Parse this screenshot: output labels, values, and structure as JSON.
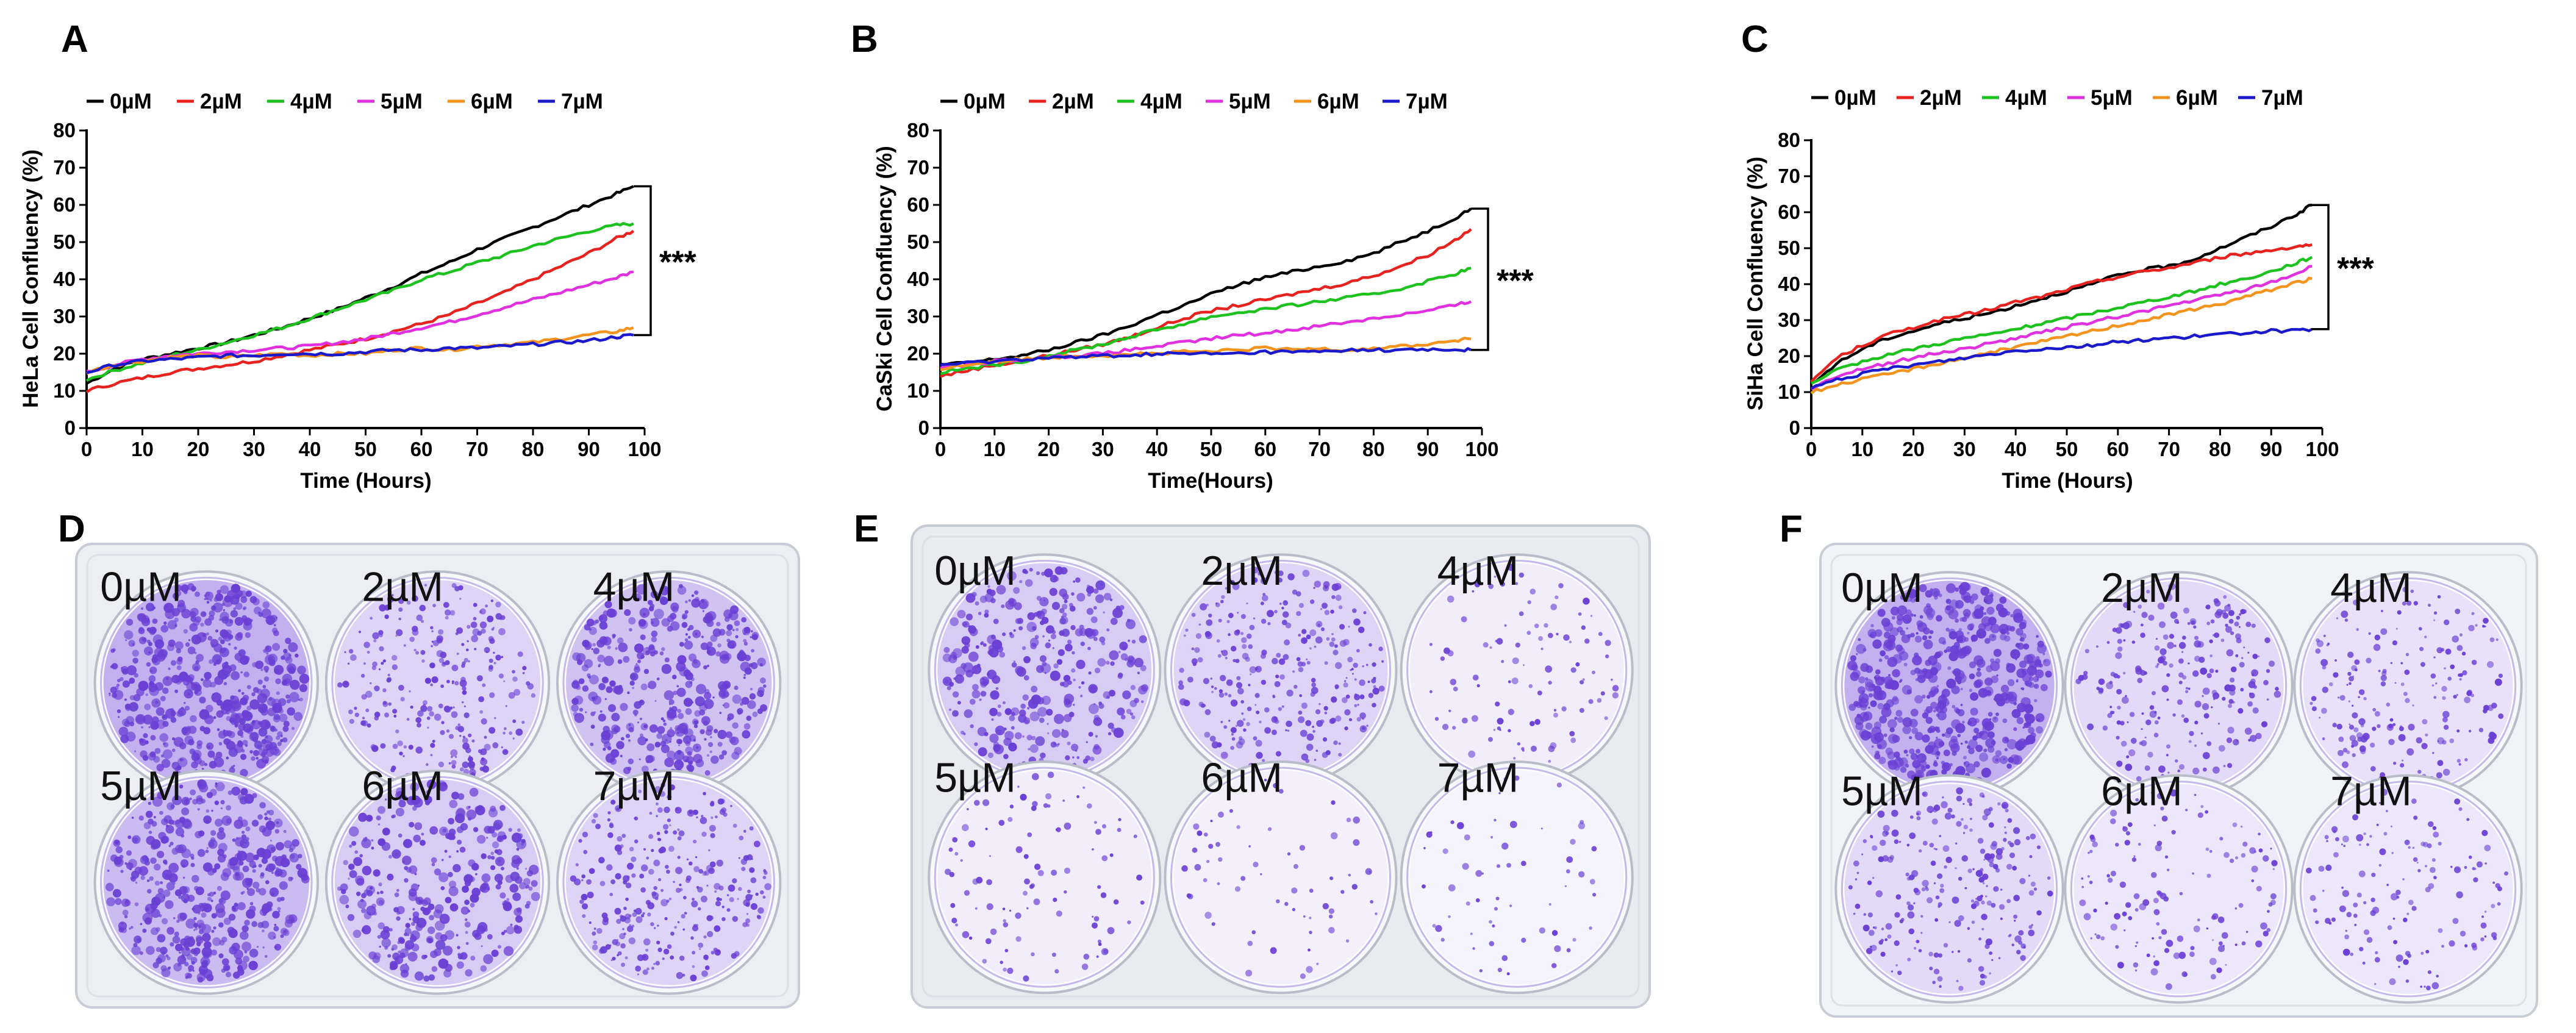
{
  "chart_data": [
    {
      "type": "line",
      "panel": "A",
      "ylabel": "HeLa Cell Confluency (%)",
      "xlabel": "Time (Hours)",
      "xlim": [
        0,
        100
      ],
      "ylim": [
        0,
        80
      ],
      "x_ticks": [
        "0",
        "10",
        "20",
        "30",
        "40",
        "50",
        "60",
        "70",
        "80",
        "90",
        "100"
      ],
      "y_ticks": [
        "0",
        "10",
        "20",
        "30",
        "40",
        "50",
        "60",
        "70",
        "80"
      ],
      "significance": "***",
      "x": [
        0,
        5,
        10,
        15,
        20,
        25,
        30,
        35,
        40,
        45,
        50,
        55,
        60,
        65,
        70,
        75,
        80,
        85,
        90,
        95,
        98
      ],
      "series": [
        {
          "name": "0µM",
          "color": "#000000",
          "values": [
            12,
            16,
            18.5,
            20,
            21.5,
            23,
            25,
            27,
            29.5,
            32,
            35,
            38,
            41.5,
            44.5,
            48,
            51,
            54,
            57,
            60,
            63,
            65
          ]
        },
        {
          "name": "2µM",
          "color": "#e8231f",
          "values": [
            10,
            12,
            13.5,
            15,
            16,
            17,
            18,
            19.5,
            21,
            22.5,
            24,
            26,
            28,
            30.5,
            33.5,
            36.5,
            40,
            43.5,
            47,
            51,
            53
          ]
        },
        {
          "name": "4µM",
          "color": "#1ec21e",
          "values": [
            13,
            15.5,
            17.5,
            19.5,
            21,
            23,
            25,
            27,
            29.5,
            32,
            34.5,
            37,
            40,
            42,
            44.5,
            46.5,
            49,
            51,
            53,
            54.5,
            55
          ]
        },
        {
          "name": "5µM",
          "color": "#e030e0",
          "values": [
            15,
            17,
            18.5,
            19.5,
            20,
            20.5,
            21,
            21.5,
            22,
            23,
            24,
            25.5,
            27,
            28.5,
            30.5,
            32.5,
            34.5,
            36.5,
            38.5,
            40.5,
            42
          ]
        },
        {
          "name": "6µM",
          "color": "#f5931f",
          "values": [
            15,
            17,
            18,
            19,
            19.5,
            19,
            19.5,
            20,
            19.5,
            20,
            20,
            21,
            21.5,
            21,
            22,
            22.5,
            23,
            24,
            25,
            26,
            27
          ]
        },
        {
          "name": "7µM",
          "color": "#1a1acc",
          "values": [
            15,
            17,
            18,
            18.5,
            19,
            19.5,
            19.5,
            20,
            20,
            20,
            20.5,
            21,
            21,
            21.5,
            21.5,
            22,
            22.5,
            23,
            23.5,
            24.5,
            25
          ]
        }
      ]
    },
    {
      "type": "line",
      "panel": "B",
      "ylabel": "CaSki Cell Confluency (%)",
      "xlabel": "Time(Hours)",
      "xlim": [
        0,
        100
      ],
      "ylim": [
        0,
        80
      ],
      "x_ticks": [
        "0",
        "10",
        "20",
        "30",
        "40",
        "50",
        "60",
        "70",
        "80",
        "90",
        "100"
      ],
      "y_ticks": [
        "0",
        "10",
        "20",
        "30",
        "40",
        "50",
        "60",
        "70",
        "80"
      ],
      "significance": "***",
      "x": [
        0,
        5,
        10,
        15,
        20,
        25,
        30,
        35,
        40,
        45,
        50,
        55,
        60,
        65,
        70,
        75,
        80,
        85,
        90,
        95,
        98
      ],
      "series": [
        {
          "name": "0µM",
          "color": "#000000",
          "values": [
            17,
            17.5,
            18.5,
            19.5,
            21,
            23,
            25,
            27.5,
            30.5,
            33,
            36,
            38.5,
            40.5,
            42,
            43.5,
            45,
            47,
            50,
            53,
            56.5,
            59
          ]
        },
        {
          "name": "2µM",
          "color": "#e8231f",
          "values": [
            14,
            15.5,
            17,
            18,
            19.5,
            21,
            22.5,
            24.5,
            27,
            29.5,
            31.5,
            33,
            34.5,
            36,
            37.5,
            39,
            41,
            43.5,
            46.5,
            50.5,
            53.5
          ]
        },
        {
          "name": "4µM",
          "color": "#1ec21e",
          "values": [
            15,
            16,
            17,
            18,
            19.5,
            21,
            22.5,
            24.5,
            26.5,
            28,
            30,
            31,
            32,
            33,
            34,
            35,
            36,
            37.5,
            39.5,
            41.5,
            43
          ]
        },
        {
          "name": "5µM",
          "color": "#e030e0",
          "values": [
            16,
            17,
            18,
            18.5,
            19,
            19.5,
            20,
            21,
            22,
            23,
            24,
            25,
            25.5,
            26.5,
            27.5,
            28.5,
            29.5,
            30.5,
            31.5,
            33,
            34
          ]
        },
        {
          "name": "6µM",
          "color": "#f5931f",
          "values": [
            16,
            17,
            18,
            18.5,
            19,
            19.5,
            19.5,
            20,
            20,
            20.5,
            20.5,
            21,
            21.5,
            21,
            21.5,
            21,
            21.5,
            22,
            22.5,
            23.5,
            24
          ]
        },
        {
          "name": "7µM",
          "color": "#1a1acc",
          "values": [
            17,
            17.5,
            18,
            18.5,
            19,
            19,
            19.5,
            19.5,
            20,
            20,
            20,
            20,
            20.5,
            20.5,
            20.5,
            21,
            21,
            21,
            21,
            21,
            21
          ]
        }
      ]
    },
    {
      "type": "line",
      "panel": "C",
      "ylabel": "SiHa Cell Confluency (%)",
      "xlabel": "Time (Hours)",
      "xlim": [
        0,
        100
      ],
      "ylim": [
        0,
        80
      ],
      "x_ticks": [
        "0",
        "10",
        "20",
        "30",
        "40",
        "50",
        "60",
        "70",
        "80",
        "90",
        "100"
      ],
      "y_ticks": [
        "0",
        "10",
        "20",
        "30",
        "40",
        "50",
        "60",
        "70",
        "80"
      ],
      "significance": "***",
      "x": [
        0,
        5,
        10,
        15,
        20,
        25,
        30,
        35,
        40,
        45,
        50,
        55,
        60,
        65,
        70,
        75,
        80,
        85,
        90,
        95,
        98
      ],
      "series": [
        {
          "name": "0µM",
          "color": "#000000",
          "values": [
            12,
            18,
            22,
            25,
            27,
            29,
            30.5,
            32,
            34,
            36,
            38,
            40,
            42.5,
            44,
            45,
            47,
            50,
            53,
            56,
            59.5,
            62
          ]
        },
        {
          "name": "2µM",
          "color": "#e8231f",
          "values": [
            13,
            19.5,
            23,
            26,
            28,
            30,
            31.5,
            33,
            35,
            36.5,
            38.5,
            40.5,
            42,
            43.5,
            44.5,
            46,
            47.5,
            48.5,
            49.5,
            50.5,
            51
          ]
        },
        {
          "name": "4µM",
          "color": "#1ec21e",
          "values": [
            12,
            16,
            18.5,
            20.5,
            22,
            23.5,
            25,
            26,
            27.5,
            29,
            30.5,
            32,
            33.5,
            35,
            36.5,
            38,
            40,
            41.5,
            43.5,
            46,
            47.5
          ]
        },
        {
          "name": "5µM",
          "color": "#e030e0",
          "values": [
            11,
            14.5,
            16.5,
            18,
            19.5,
            21,
            22,
            23.5,
            25,
            26.5,
            28,
            29.5,
            31,
            32.5,
            34,
            35.5,
            37,
            38.5,
            40.5,
            43,
            45
          ]
        },
        {
          "name": "6µM",
          "color": "#f5931f",
          "values": [
            10,
            12,
            13.5,
            15,
            16.5,
            18,
            19.5,
            21,
            22.5,
            24,
            25.5,
            27,
            28.5,
            30,
            31.5,
            33,
            34.5,
            36.5,
            38.5,
            40.5,
            41.5
          ]
        },
        {
          "name": "7µM",
          "color": "#1a1acc",
          "values": [
            11,
            13.5,
            15,
            16.5,
            17.5,
            18.5,
            19.5,
            20.5,
            21.5,
            22,
            22.5,
            23,
            24,
            24.5,
            25,
            25.5,
            26,
            26.5,
            27,
            27,
            27.5
          ]
        }
      ]
    }
  ],
  "plates": [
    {
      "panel": "D",
      "labels": [
        "0µM",
        "2µM",
        "4µM",
        "5µM",
        "6µM",
        "7µM"
      ],
      "densities": [
        1.0,
        0.45,
        0.75,
        0.85,
        0.6,
        0.5
      ]
    },
    {
      "panel": "E",
      "labels": [
        "0µM",
        "2µM",
        "4µM",
        "5µM",
        "6µM",
        "7µM"
      ],
      "densities": [
        0.6,
        0.5,
        0.12,
        0.12,
        0.05,
        0.04
      ]
    },
    {
      "panel": "F",
      "labels": [
        "0µM",
        "2µM",
        "4µM",
        "5µM",
        "6µM",
        "7µM"
      ],
      "densities": [
        1.0,
        0.4,
        0.3,
        0.4,
        0.2,
        0.2
      ]
    }
  ],
  "colors": {
    "stain": "#6a3fd4",
    "plate_bg": "#eef0f4"
  }
}
